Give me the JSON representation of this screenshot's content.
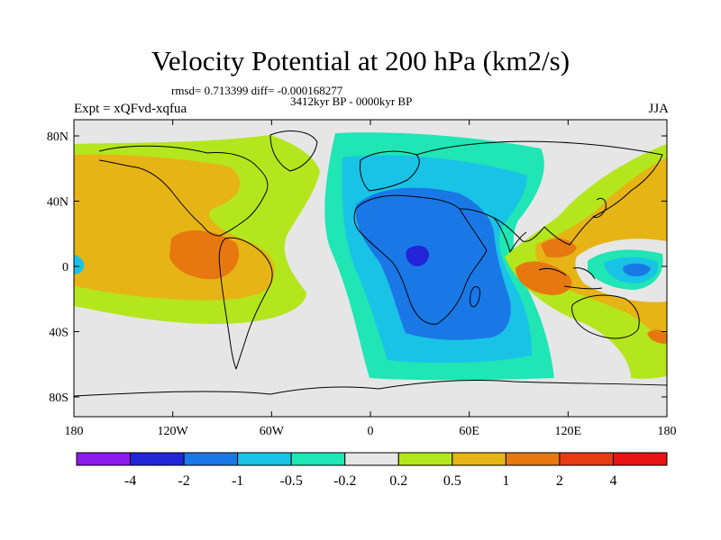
{
  "title": "Velocity Potential at 200 hPa (km2/s)",
  "stats": "rmsd= 0.713399 diff= -0.000168277",
  "period": "3412kyr BP - 0000kyr BP",
  "experiment": "Expt = xQFvd-xqfua",
  "season": "JJA",
  "x_ticks": [
    "180",
    "120W",
    "60W",
    "0",
    "60E",
    "120E",
    "180"
  ],
  "y_ticks": [
    "80N",
    "40N",
    "0",
    "40S",
    "80S"
  ],
  "colorbar": {
    "labels": [
      "-4",
      "-2",
      "-1",
      "-0.5",
      "-0.2",
      "0.2",
      "0.5",
      "1",
      "2",
      "4"
    ],
    "colors": [
      "#8c1aeb",
      "#2323d8",
      "#1a78e6",
      "#19c3e6",
      "#1fe6b4",
      "#e6e6e6",
      "#b4e61e",
      "#e6b414",
      "#e6780f",
      "#e63c14",
      "#e61414"
    ]
  },
  "map_colors": {
    "background": "#e6e6e6",
    "land": "#000000",
    "neg_weak": "#1fe6b4",
    "neg_mid": "#19c3e6",
    "neg_strong": "#1a78e6",
    "neg_max": "#2323d8",
    "pos_weak": "#b4e61e",
    "pos_mid": "#e6b414",
    "pos_strong": "#e6780f"
  }
}
